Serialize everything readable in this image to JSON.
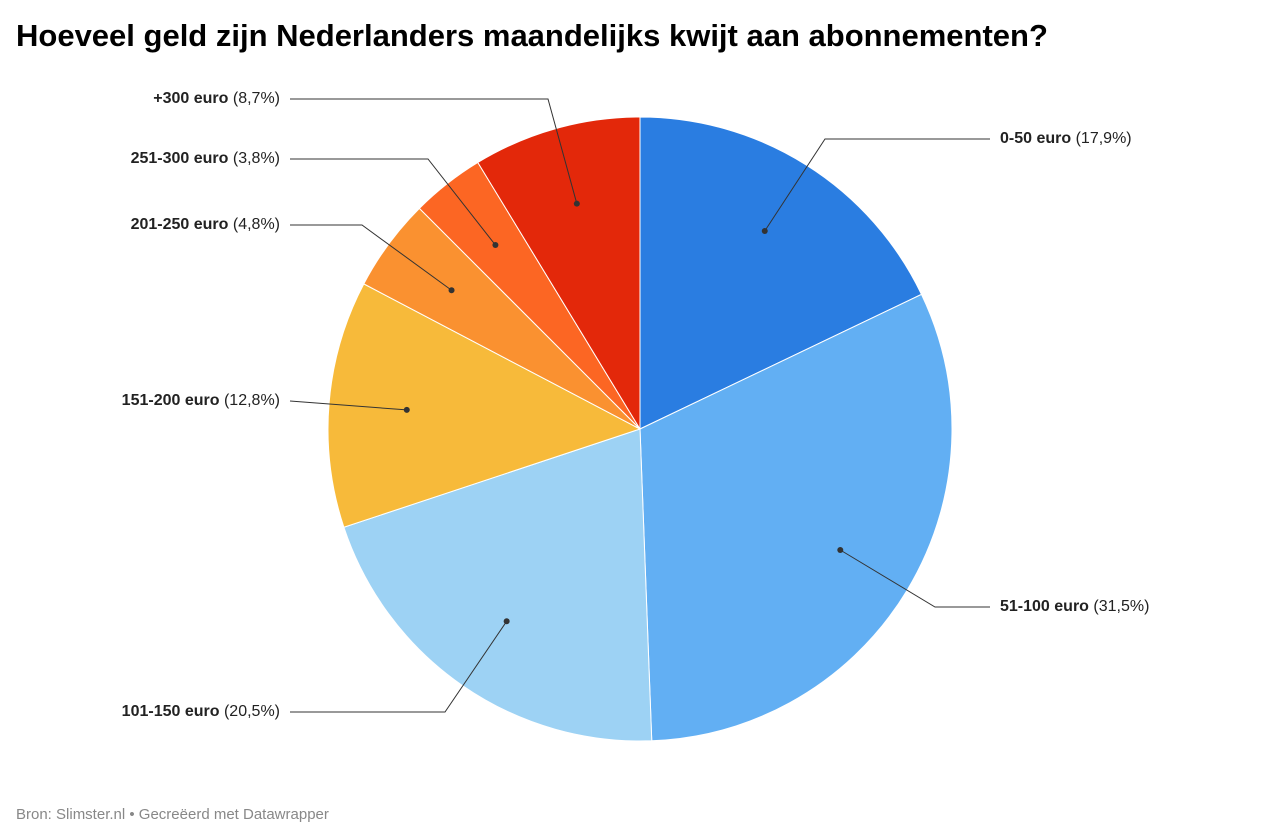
{
  "chart_data": {
    "type": "pie",
    "title": "Hoeveel geld zijn Nederlanders maandelijks kwijt aan abonnementen?",
    "categories": [
      "0-50 euro",
      "51-100 euro",
      "101-150 euro",
      "151-200 euro",
      "201-250 euro",
      "251-300 euro",
      "+300 euro"
    ],
    "values": [
      17.9,
      31.5,
      20.5,
      12.8,
      4.8,
      3.8,
      8.7
    ],
    "value_labels": [
      "(17,9%)",
      "(31,5%)",
      "(20,5%)",
      "(12,8%)",
      "(4,8%)",
      "(3,8%)",
      "(8,7%)"
    ],
    "colors": [
      "#2a7de1",
      "#62aff3",
      "#9dd2f4",
      "#f7ba3a",
      "#fa9130",
      "#fc6623",
      "#e3280a"
    ],
    "source": "Bron: Slimster.nl • Gecreëerd met Datawrapper"
  }
}
